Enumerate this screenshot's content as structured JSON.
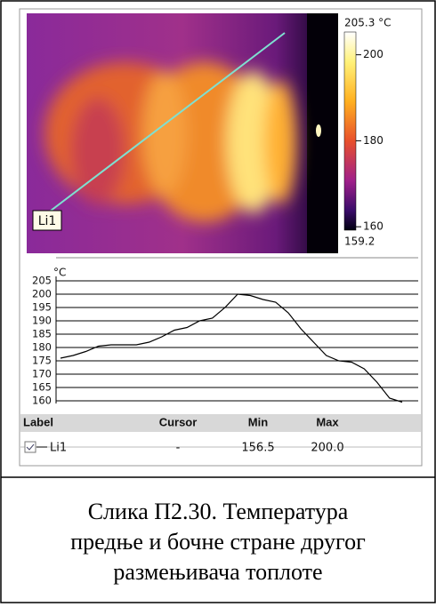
{
  "thermal": {
    "line_label": "Li1",
    "colorbar": {
      "lim": [
        159.2,
        205.3
      ],
      "ticks": [
        {
          "value": 205.3,
          "label": "205.3 °C"
        },
        200,
        180,
        160,
        159.2
      ]
    }
  },
  "chart_data": {
    "type": "line",
    "y_label": "°C",
    "ylim": [
      159,
      206
    ],
    "yticks": [
      160,
      165,
      170,
      175,
      180,
      185,
      190,
      195,
      200,
      205
    ],
    "grid": true,
    "series": [
      {
        "color": "#000000",
        "values": [
          176,
          177,
          178.5,
          180.5,
          181,
          181,
          181,
          182,
          184,
          186.5,
          187.5,
          190,
          191,
          195,
          200,
          199.5,
          198,
          197,
          193,
          187,
          182,
          177,
          175,
          174.5,
          172,
          167,
          161,
          159.5
        ]
      }
    ]
  },
  "table": {
    "header": [
      "Label",
      "Cursor",
      "Min",
      "Max"
    ],
    "rows": [
      [
        "Li1",
        "-",
        "156.5",
        "200.0"
      ]
    ]
  },
  "caption": [
    "Слика П2.30. Температура",
    "предње и бочне стране другог",
    "размењивача топлоте"
  ]
}
